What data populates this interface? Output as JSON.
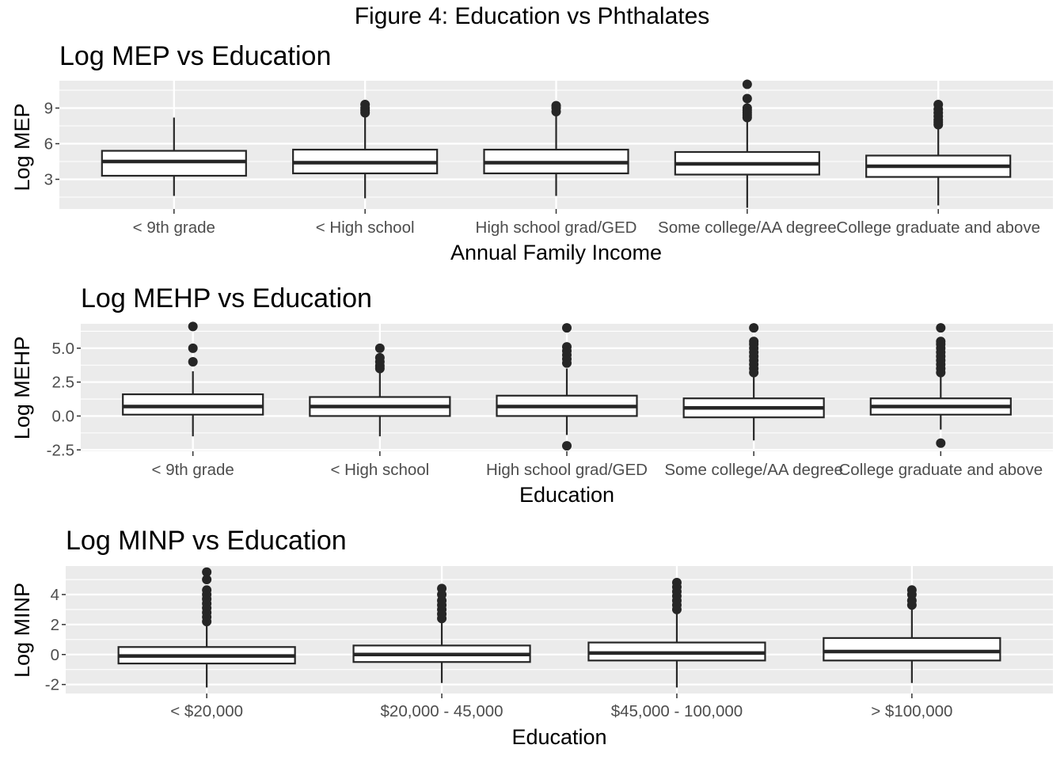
{
  "figure_title": "Figure 4: Education vs Phthalates",
  "colors": {
    "panel_bg": "#ebebeb",
    "grid": "#ffffff",
    "box_fill": "#ffffff",
    "box_line": "#262626",
    "tick_text": "#4d4d4d"
  },
  "chart_data": [
    {
      "type": "box",
      "title": "Log MEP vs Education",
      "xlabel": "Annual Family Income",
      "ylabel": "Log MEP",
      "ylim": [
        0.5,
        11.3
      ],
      "yticks": [
        3,
        6,
        9
      ],
      "ytick_labels": [
        "3",
        "6",
        "9"
      ],
      "grid": true,
      "categories": [
        "< 9th grade",
        "< High school",
        "High school grad/GED",
        "Some college/AA degree",
        "College graduate and above"
      ],
      "boxes": [
        {
          "category": "< 9th grade",
          "whisker_low": 1.6,
          "q1": 3.3,
          "median": 4.5,
          "q3": 5.4,
          "whisker_high": 8.2,
          "outliers": []
        },
        {
          "category": "< High school",
          "whisker_low": 1.4,
          "q1": 3.5,
          "median": 4.4,
          "q3": 5.5,
          "whisker_high": 8.4,
          "outliers": [
            8.6,
            8.8,
            9.0,
            9.3
          ]
        },
        {
          "category": "High school grad/GED",
          "whisker_low": 1.6,
          "q1": 3.5,
          "median": 4.4,
          "q3": 5.5,
          "whisker_high": 8.4,
          "outliers": [
            8.7,
            9.0,
            9.2
          ]
        },
        {
          "category": "Some college/AA degree",
          "whisker_low": 0.6,
          "q1": 3.4,
          "median": 4.3,
          "q3": 5.3,
          "whisker_high": 8.0,
          "outliers": [
            8.2,
            8.4,
            8.6,
            8.8,
            9.0,
            9.8,
            11.0
          ]
        },
        {
          "category": "College graduate and above",
          "whisker_low": 0.8,
          "q1": 3.2,
          "median": 4.1,
          "q3": 5.0,
          "whisker_high": 7.4,
          "outliers": [
            7.6,
            7.8,
            8.0,
            8.3,
            8.6,
            8.9,
            9.3
          ]
        }
      ]
    },
    {
      "type": "box",
      "title": "Log MEHP vs Education",
      "xlabel": "Education",
      "ylabel": "Log MEHP",
      "ylim": [
        -2.6,
        6.8
      ],
      "yticks": [
        -2.5,
        0,
        2.5,
        5
      ],
      "ytick_labels": [
        "-2.5",
        "0.0",
        "2.5",
        "5.0"
      ],
      "grid": true,
      "categories": [
        "< 9th grade",
        "< High school",
        "High school grad/GED",
        "Some college/AA degree",
        "College graduate and above"
      ],
      "boxes": [
        {
          "category": "< 9th grade",
          "whisker_low": -1.5,
          "q1": 0.1,
          "median": 0.7,
          "q3": 1.6,
          "whisker_high": 3.3,
          "outliers": [
            4.0,
            5.0,
            6.6
          ]
        },
        {
          "category": "< High school",
          "whisker_low": -1.5,
          "q1": 0.0,
          "median": 0.7,
          "q3": 1.4,
          "whisker_high": 3.2,
          "outliers": [
            3.5,
            3.7,
            4.0,
            4.3,
            5.0
          ]
        },
        {
          "category": "High school grad/GED",
          "whisker_low": -1.4,
          "q1": 0.0,
          "median": 0.7,
          "q3": 1.5,
          "whisker_high": 3.5,
          "outliers": [
            -2.2,
            3.9,
            4.2,
            4.5,
            4.8,
            5.1,
            6.5
          ]
        },
        {
          "category": "Some college/AA degree",
          "whisker_low": -1.8,
          "q1": -0.1,
          "median": 0.6,
          "q3": 1.3,
          "whisker_high": 3.0,
          "outliers": [
            3.2,
            3.5,
            3.8,
            4.1,
            4.4,
            4.7,
            5.0,
            5.3,
            5.5,
            6.5
          ]
        },
        {
          "category": "College graduate and above",
          "whisker_low": -1.0,
          "q1": 0.1,
          "median": 0.7,
          "q3": 1.3,
          "whisker_high": 3.0,
          "outliers": [
            -2.0,
            3.2,
            3.5,
            3.8,
            4.1,
            4.4,
            4.7,
            5.0,
            5.3,
            5.5,
            6.5
          ]
        }
      ]
    },
    {
      "type": "box",
      "title": "Log MINP vs Education",
      "xlabel": "Education",
      "ylabel": "Log MINP",
      "ylim": [
        -2.6,
        5.9
      ],
      "yticks": [
        -2,
        0,
        2,
        4
      ],
      "ytick_labels": [
        "-2",
        "0",
        "2",
        "4"
      ],
      "grid": true,
      "categories": [
        "< $20,000",
        "$20,000 - 45,000",
        "$45,000 - 100,000",
        "> $100,000"
      ],
      "boxes": [
        {
          "category": "< $20,000",
          "whisker_low": -2.2,
          "q1": -0.6,
          "median": -0.1,
          "q3": 0.5,
          "whisker_high": 2.0,
          "outliers": [
            2.2,
            2.5,
            2.8,
            3.1,
            3.4,
            3.7,
            4.0,
            4.3,
            5.0,
            5.5
          ]
        },
        {
          "category": "$20,000 - 45,000",
          "whisker_low": -1.9,
          "q1": -0.5,
          "median": 0.0,
          "q3": 0.6,
          "whisker_high": 2.2,
          "outliers": [
            2.4,
            2.7,
            3.0,
            3.3,
            3.6,
            4.0,
            4.4
          ]
        },
        {
          "category": "$45,000 - 100,000",
          "whisker_low": -2.2,
          "q1": -0.4,
          "median": 0.1,
          "q3": 0.8,
          "whisker_high": 2.8,
          "outliers": [
            3.0,
            3.3,
            3.6,
            3.9,
            4.2,
            4.5,
            4.8
          ]
        },
        {
          "category": "> $100,000",
          "whisker_low": -1.9,
          "q1": -0.4,
          "median": 0.2,
          "q3": 1.1,
          "whisker_high": 3.1,
          "outliers": [
            3.3,
            3.6,
            4.0,
            4.3
          ]
        }
      ]
    }
  ]
}
